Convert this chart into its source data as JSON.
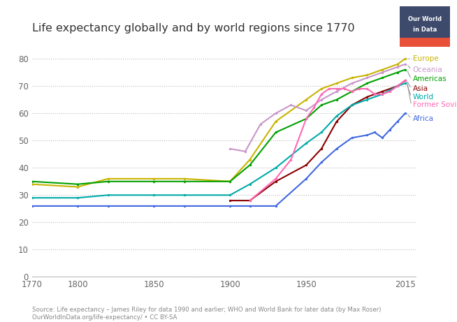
{
  "title": "Life expectancy globally and by world regions since 1770",
  "source_text": "Source: Life expectancy – James Riley for data 1990 and earlier; WHO and World Bank for later data (by Max Roser)\nOurWorldInData.org/life-expectancy/ • CC BY-SA",
  "xlim": [
    1770,
    2022
  ],
  "ylim": [
    0,
    85
  ],
  "yticks": [
    0,
    10,
    20,
    30,
    40,
    50,
    60,
    70,
    80
  ],
  "xticks": [
    1770,
    1800,
    1850,
    1900,
    1950,
    2015
  ],
  "series": {
    "Europe": {
      "color": "#C8B400",
      "data": [
        [
          1770,
          34
        ],
        [
          1800,
          33
        ],
        [
          1820,
          36
        ],
        [
          1850,
          36
        ],
        [
          1870,
          36
        ],
        [
          1900,
          35
        ],
        [
          1913,
          43
        ],
        [
          1930,
          57
        ],
        [
          1950,
          65
        ],
        [
          1960,
          69
        ],
        [
          1970,
          71
        ],
        [
          1980,
          73
        ],
        [
          1990,
          74
        ],
        [
          2000,
          76
        ],
        [
          2010,
          78
        ],
        [
          2015,
          80
        ]
      ]
    },
    "Oceania": {
      "color": "#C896C8",
      "data": [
        [
          1900,
          47
        ],
        [
          1910,
          46
        ],
        [
          1920,
          56
        ],
        [
          1930,
          60
        ],
        [
          1940,
          63
        ],
        [
          1950,
          61
        ],
        [
          1960,
          65
        ],
        [
          1970,
          68
        ],
        [
          1980,
          71
        ],
        [
          1990,
          73
        ],
        [
          2000,
          75
        ],
        [
          2010,
          77
        ],
        [
          2015,
          78
        ]
      ]
    },
    "Americas": {
      "color": "#00A000",
      "data": [
        [
          1770,
          35
        ],
        [
          1800,
          34
        ],
        [
          1820,
          35
        ],
        [
          1850,
          35
        ],
        [
          1870,
          35
        ],
        [
          1900,
          35
        ],
        [
          1913,
          41
        ],
        [
          1930,
          53
        ],
        [
          1950,
          58
        ],
        [
          1960,
          63
        ],
        [
          1970,
          65
        ],
        [
          1980,
          68
        ],
        [
          1990,
          71
        ],
        [
          2000,
          73
        ],
        [
          2010,
          75
        ],
        [
          2015,
          76
        ]
      ]
    },
    "Asia": {
      "color": "#8B0000",
      "data": [
        [
          1900,
          28
        ],
        [
          1913,
          28
        ],
        [
          1930,
          35
        ],
        [
          1950,
          41
        ],
        [
          1960,
          47
        ],
        [
          1970,
          57
        ],
        [
          1980,
          63
        ],
        [
          1990,
          66
        ],
        [
          2000,
          68
        ],
        [
          2010,
          70
        ],
        [
          2015,
          72
        ]
      ]
    },
    "World": {
      "color": "#00AAAA",
      "data": [
        [
          1770,
          29
        ],
        [
          1800,
          29
        ],
        [
          1820,
          30
        ],
        [
          1850,
          30
        ],
        [
          1870,
          30
        ],
        [
          1900,
          30
        ],
        [
          1913,
          34
        ],
        [
          1930,
          40
        ],
        [
          1950,
          49
        ],
        [
          1960,
          53
        ],
        [
          1970,
          59
        ],
        [
          1980,
          63
        ],
        [
          1990,
          65
        ],
        [
          2000,
          67
        ],
        [
          2010,
          70
        ],
        [
          2015,
          71
        ]
      ]
    },
    "Former Soviet Union": {
      "color": "#FF69B4",
      "data": [
        [
          1913,
          28
        ],
        [
          1930,
          36
        ],
        [
          1940,
          43
        ],
        [
          1950,
          58
        ],
        [
          1955,
          62
        ],
        [
          1960,
          67
        ],
        [
          1965,
          69
        ],
        [
          1970,
          69
        ],
        [
          1975,
          69
        ],
        [
          1980,
          68
        ],
        [
          1985,
          69
        ],
        [
          1990,
          69
        ],
        [
          1995,
          67
        ],
        [
          2000,
          67
        ],
        [
          2005,
          68
        ],
        [
          2010,
          70
        ],
        [
          2015,
          72
        ]
      ]
    },
    "Africa": {
      "color": "#4169E1",
      "data": [
        [
          1770,
          26
        ],
        [
          1800,
          26
        ],
        [
          1820,
          26
        ],
        [
          1850,
          26
        ],
        [
          1870,
          26
        ],
        [
          1900,
          26
        ],
        [
          1913,
          26
        ],
        [
          1930,
          26
        ],
        [
          1950,
          36
        ],
        [
          1960,
          42
        ],
        [
          1970,
          47
        ],
        [
          1980,
          51
        ],
        [
          1990,
          52
        ],
        [
          1995,
          53
        ],
        [
          2000,
          51
        ],
        [
          2005,
          54
        ],
        [
          2010,
          57
        ],
        [
          2015,
          60
        ]
      ]
    }
  },
  "legend_order": [
    "Europe",
    "Oceania",
    "Americas",
    "Asia",
    "World",
    "Former Soviet Union",
    "Africa"
  ],
  "logo_main_color": "#3d4a6b",
  "logo_stripe_color": "#e8503a",
  "background_color": "#ffffff"
}
